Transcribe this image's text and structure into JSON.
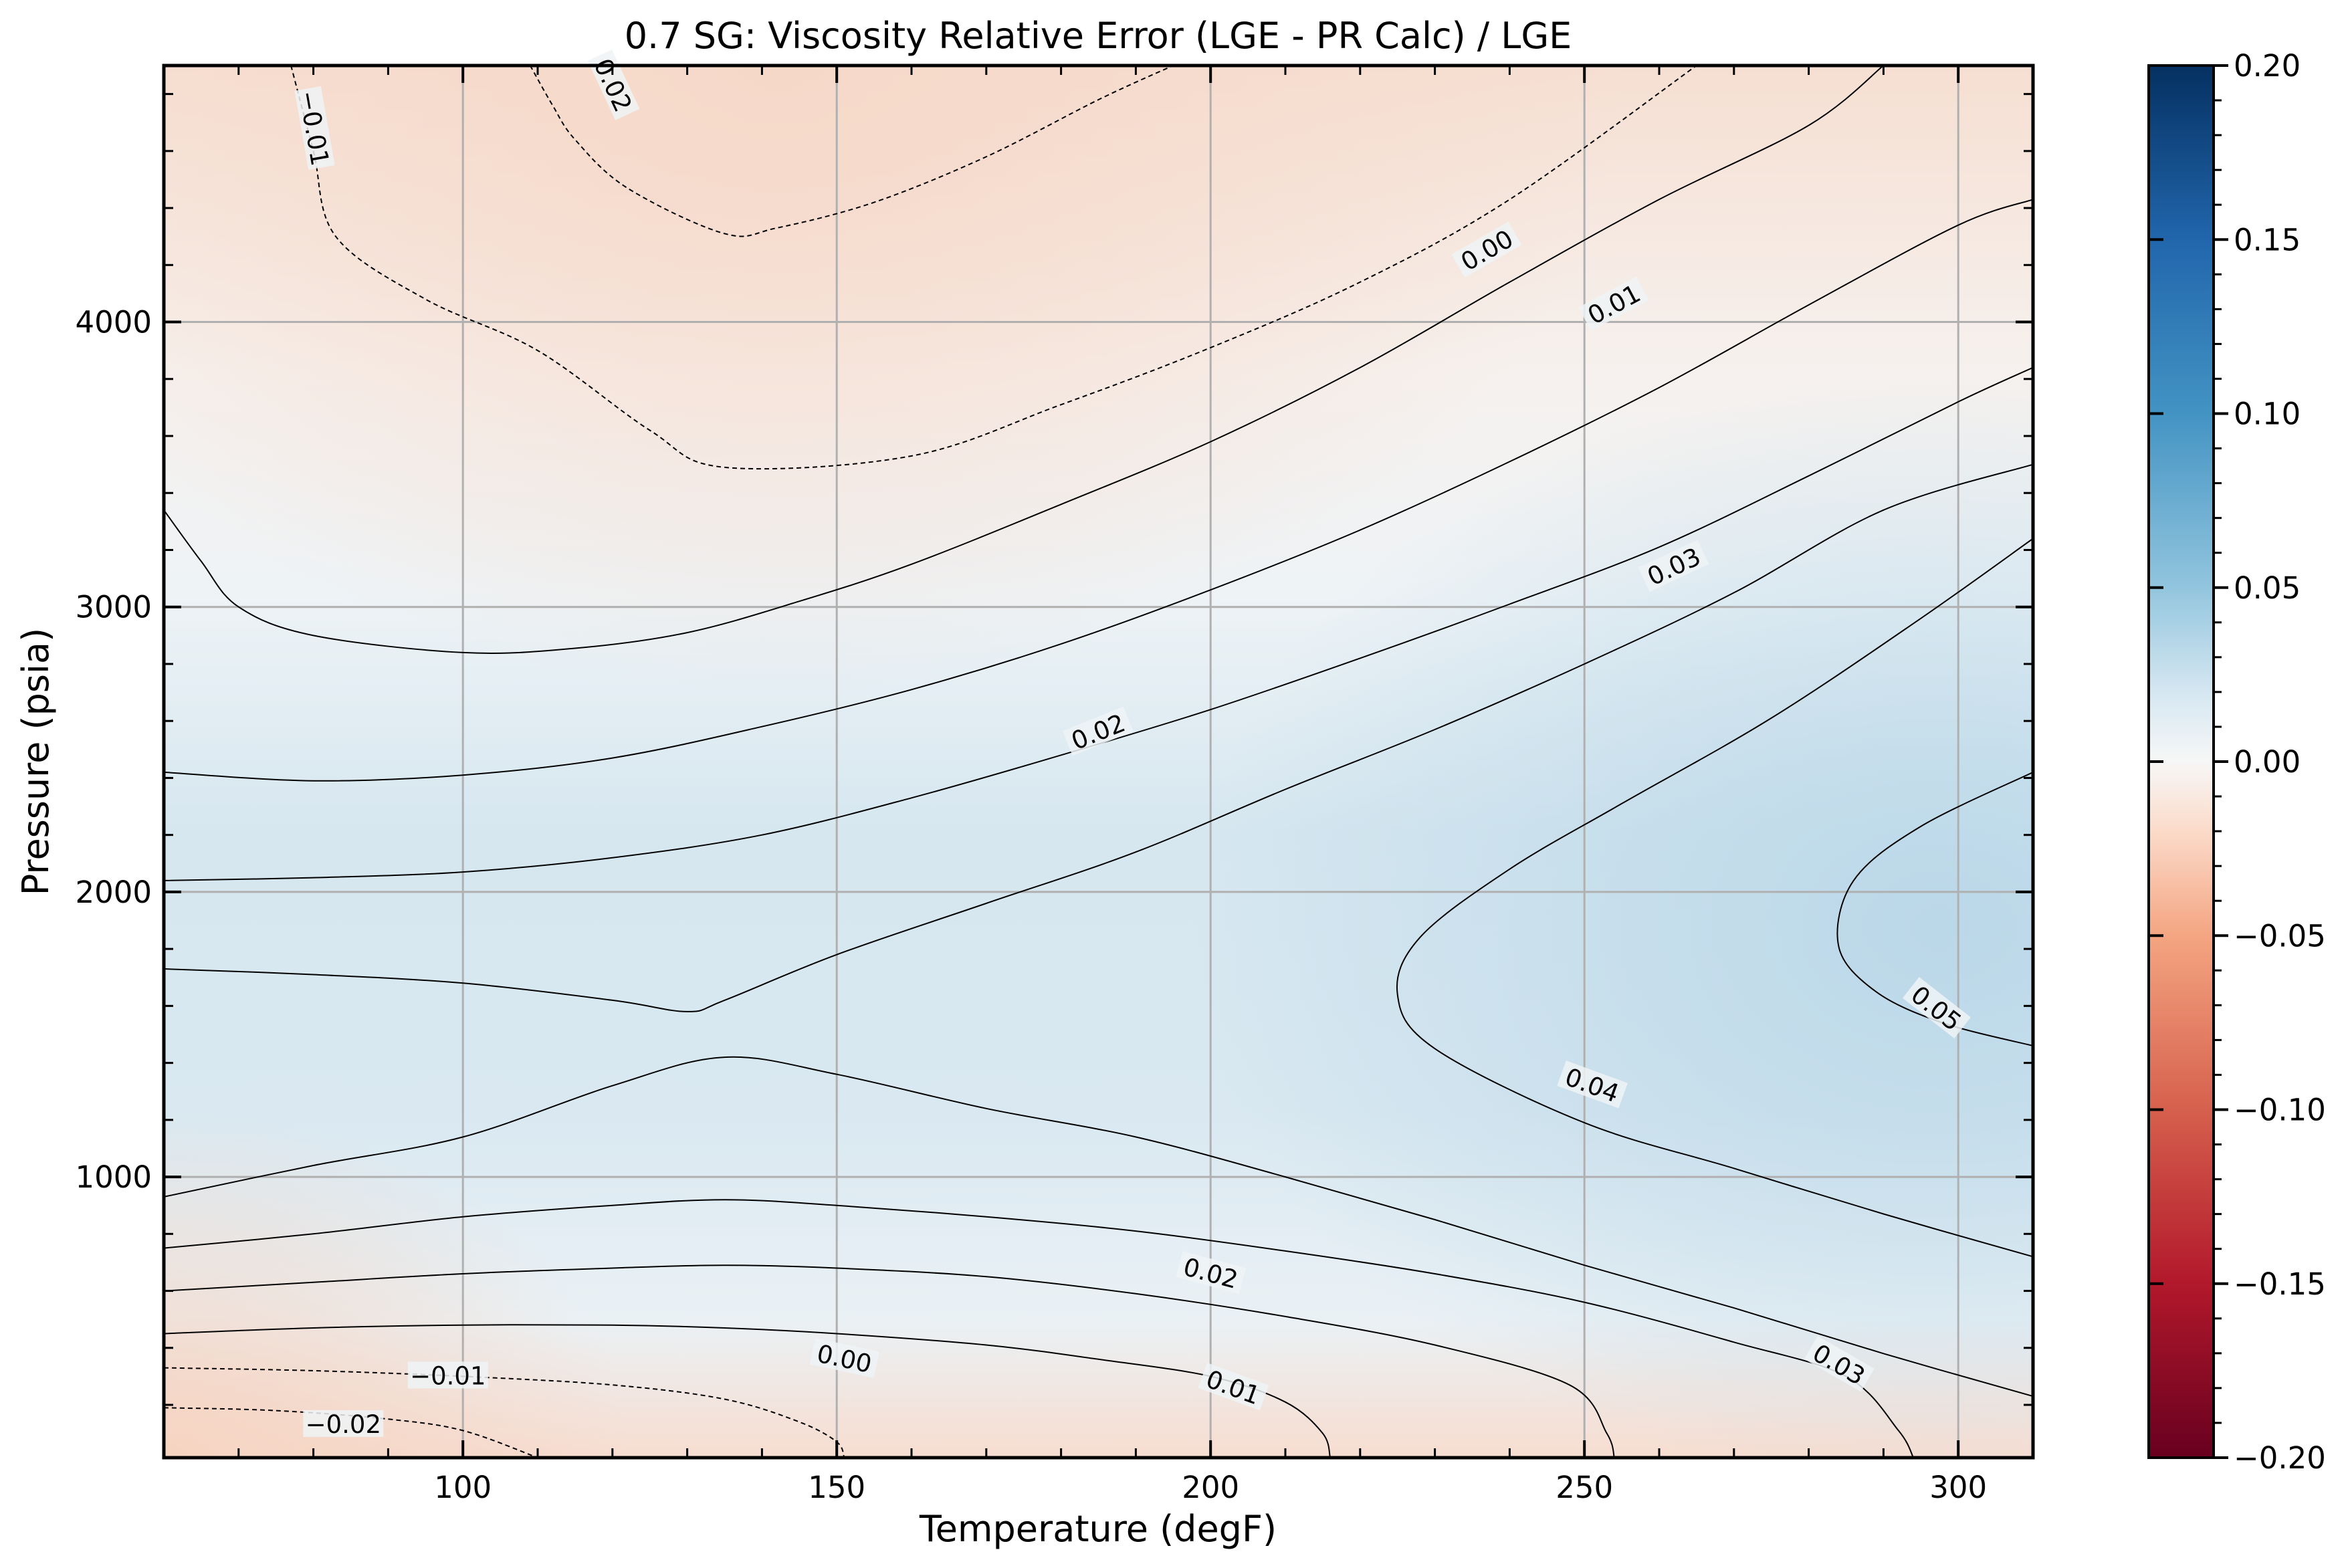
{
  "chart_data": {
    "type": "contour",
    "title": "0.7 SG: Viscosity Relative Error (LGE - PR Calc) / LGE",
    "xlabel": "Temperature (degF)",
    "ylabel": "Pressure (psia)",
    "xlim": [
      60,
      310
    ],
    "ylim": [
      14.7,
      4900
    ],
    "grid": true,
    "x_ticks": [
      100,
      150,
      200,
      250,
      300
    ],
    "y_ticks": [
      1000,
      2000,
      3000,
      4000
    ],
    "colormap": "RdBu",
    "colorbar": {
      "vmin": -0.2,
      "vmax": 0.2,
      "ticks": [
        "−0.20",
        "−0.15",
        "−0.10",
        "−0.05",
        "0.00",
        "0.05",
        "0.10",
        "0.15",
        "0.20"
      ],
      "tick_values": [
        -0.2,
        -0.15,
        -0.1,
        -0.05,
        0.0,
        0.05,
        0.1,
        0.15,
        0.2
      ]
    },
    "contours": [
      {
        "level": -0.02,
        "style": "dashed",
        "points": [
          [
            77,
            4900
          ],
          [
            80,
            4600
          ],
          [
            83,
            4300
          ],
          [
            95,
            4080
          ],
          [
            110,
            3900
          ],
          [
            125,
            3620
          ],
          [
            135,
            3490
          ],
          [
            160,
            3530
          ],
          [
            180,
            3710
          ],
          [
            200,
            3910
          ],
          [
            220,
            4140
          ],
          [
            240,
            4430
          ],
          [
            265,
            4900
          ]
        ]
      },
      {
        "level": -0.01,
        "style": "dashed",
        "points": [
          [
            109,
            4900
          ],
          [
            112,
            4760
          ],
          [
            115,
            4640
          ],
          [
            122,
            4470
          ],
          [
            135,
            4310
          ],
          [
            142,
            4330
          ],
          [
            155,
            4420
          ],
          [
            170,
            4580
          ],
          [
            185,
            4780
          ],
          [
            195,
            4900
          ]
        ]
      },
      {
        "level": 0.0,
        "style": "solid",
        "points": [
          [
            60,
            3340
          ],
          [
            65,
            3160
          ],
          [
            70,
            3000
          ],
          [
            80,
            2900
          ],
          [
            100,
            2840
          ],
          [
            115,
            2855
          ],
          [
            130,
            2910
          ],
          [
            145,
            3020
          ],
          [
            160,
            3150
          ],
          [
            180,
            3360
          ],
          [
            200,
            3580
          ],
          [
            220,
            3840
          ],
          [
            240,
            4140
          ],
          [
            260,
            4430
          ],
          [
            280,
            4690
          ],
          [
            290,
            4900
          ]
        ]
      },
      {
        "level": 0.01,
        "style": "solid",
        "points": [
          [
            60,
            2420
          ],
          [
            80,
            2390
          ],
          [
            100,
            2410
          ],
          [
            120,
            2470
          ],
          [
            140,
            2580
          ],
          [
            160,
            2710
          ],
          [
            180,
            2870
          ],
          [
            200,
            3060
          ],
          [
            220,
            3270
          ],
          [
            240,
            3510
          ],
          [
            260,
            3770
          ],
          [
            280,
            4060
          ],
          [
            300,
            4340
          ],
          [
            310,
            4430
          ]
        ]
      },
      {
        "level": 0.02,
        "style": "solid",
        "points": [
          [
            60,
            2040
          ],
          [
            80,
            2050
          ],
          [
            100,
            2070
          ],
          [
            120,
            2120
          ],
          [
            140,
            2200
          ],
          [
            160,
            2330
          ],
          [
            180,
            2480
          ],
          [
            200,
            2640
          ],
          [
            220,
            2820
          ],
          [
            240,
            3010
          ],
          [
            260,
            3210
          ],
          [
            280,
            3460
          ],
          [
            300,
            3720
          ],
          [
            310,
            3840
          ]
        ]
      },
      {
        "level": 0.03,
        "style": "solid",
        "points": [
          [
            60,
            1730
          ],
          [
            80,
            1710
          ],
          [
            100,
            1680
          ],
          [
            120,
            1620
          ],
          [
            130,
            1580
          ],
          [
            135,
            1620
          ],
          [
            150,
            1780
          ],
          [
            170,
            1960
          ],
          [
            190,
            2140
          ],
          [
            210,
            2360
          ],
          [
            230,
            2570
          ],
          [
            250,
            2800
          ],
          [
            270,
            3050
          ],
          [
            290,
            3340
          ],
          [
            310,
            3500
          ]
        ]
      },
      {
        "level": 0.04,
        "style": "solid",
        "points": [
          [
            60,
            930
          ],
          [
            80,
            1040
          ],
          [
            100,
            1140
          ],
          [
            120,
            1320
          ],
          [
            135,
            1420
          ],
          [
            150,
            1360
          ],
          [
            170,
            1240
          ],
          [
            190,
            1140
          ],
          [
            210,
            1000
          ],
          [
            230,
            850
          ],
          [
            250,
            690
          ],
          [
            270,
            540
          ],
          [
            290,
            380
          ],
          [
            310,
            230
          ]
        ]
      },
      {
        "level": 0.04,
        "style": "solid",
        "points": [
          [
            310,
            720
          ],
          [
            290,
            870
          ],
          [
            270,
            1030
          ],
          [
            250,
            1190
          ],
          [
            230,
            1450
          ],
          [
            225,
            1640
          ],
          [
            228,
            1840
          ],
          [
            240,
            2080
          ],
          [
            255,
            2310
          ],
          [
            275,
            2610
          ],
          [
            295,
            2960
          ],
          [
            310,
            3240
          ]
        ]
      },
      {
        "level": 0.05,
        "style": "solid",
        "points": [
          [
            310,
            1460
          ],
          [
            298,
            1540
          ],
          [
            289,
            1650
          ],
          [
            284,
            1810
          ],
          [
            286,
            2040
          ],
          [
            295,
            2230
          ],
          [
            310,
            2420
          ]
        ]
      },
      {
        "level": 0.03,
        "style": "solid",
        "points": [
          [
            60,
            750
          ],
          [
            80,
            800
          ],
          [
            100,
            860
          ],
          [
            120,
            900
          ],
          [
            135,
            920
          ],
          [
            150,
            900
          ],
          [
            170,
            860
          ],
          [
            190,
            810
          ],
          [
            210,
            740
          ],
          [
            230,
            660
          ],
          [
            250,
            560
          ],
          [
            270,
            420
          ],
          [
            285,
            300
          ],
          [
            292,
            110
          ],
          [
            294,
            14.7
          ]
        ]
      },
      {
        "level": 0.02,
        "style": "solid",
        "points": [
          [
            60,
            600
          ],
          [
            80,
            630
          ],
          [
            100,
            660
          ],
          [
            120,
            680
          ],
          [
            135,
            690
          ],
          [
            150,
            680
          ],
          [
            170,
            650
          ],
          [
            190,
            590
          ],
          [
            210,
            510
          ],
          [
            230,
            410
          ],
          [
            248,
            270
          ],
          [
            253,
            100
          ],
          [
            254,
            14.7
          ]
        ]
      },
      {
        "level": 0.01,
        "style": "solid",
        "points": [
          [
            60,
            450
          ],
          [
            80,
            470
          ],
          [
            100,
            480
          ],
          [
            120,
            480
          ],
          [
            135,
            470
          ],
          [
            150,
            450
          ],
          [
            170,
            410
          ],
          [
            185,
            360
          ],
          [
            200,
            300
          ],
          [
            210,
            210
          ],
          [
            215,
            100
          ],
          [
            216,
            14.7
          ]
        ]
      },
      {
        "level": 0.0,
        "style": "solid",
        "points": [
          [
            60,
            14.7
          ],
          [
            60,
            14.7
          ]
        ]
      },
      {
        "level": -0.01,
        "style": "dashed",
        "points": [
          [
            60,
            330
          ],
          [
            80,
            320
          ],
          [
            100,
            300
          ],
          [
            120,
            270
          ],
          [
            135,
            220
          ],
          [
            145,
            140
          ],
          [
            150,
            70
          ],
          [
            151,
            14.7
          ]
        ]
      },
      {
        "level": -0.02,
        "style": "dashed",
        "points": [
          [
            60,
            190
          ],
          [
            75,
            180
          ],
          [
            90,
            150
          ],
          [
            100,
            110
          ],
          [
            110,
            14.7
          ]
        ]
      }
    ],
    "contour_labels": [
      {
        "text": "−0.01",
        "x": 80,
        "y": 4680,
        "angle": 80
      },
      {
        "text": "0.02",
        "x": 120,
        "y": 4830,
        "angle": 65
      },
      {
        "text": "0.00",
        "x": 237,
        "y": 4250,
        "angle": -30
      },
      {
        "text": "0.01",
        "x": 254,
        "y": 4060,
        "angle": -28
      },
      {
        "text": "0.03",
        "x": 262,
        "y": 3140,
        "angle": -25
      },
      {
        "text": "0.02",
        "x": 185,
        "y": 2560,
        "angle": -22
      },
      {
        "text": "0.05",
        "x": 297,
        "y": 1590,
        "angle": 38
      },
      {
        "text": "0.04",
        "x": 251,
        "y": 1320,
        "angle": 20
      },
      {
        "text": "0.02",
        "x": 200,
        "y": 660,
        "angle": 15
      },
      {
        "text": "0.03",
        "x": 284,
        "y": 340,
        "angle": 30
      },
      {
        "text": "0.01",
        "x": 203,
        "y": 260,
        "angle": 20
      },
      {
        "text": "0.00",
        "x": 151,
        "y": 360,
        "angle": 12
      },
      {
        "text": "−0.01",
        "x": 98,
        "y": 300,
        "angle": 0
      },
      {
        "text": "−0.02",
        "x": 84,
        "y": 130,
        "angle": 0
      }
    ]
  },
  "colors": {
    "zero": "#f7f7f7",
    "positive": "#bcd9e9",
    "negative": "#f6d6c6"
  }
}
